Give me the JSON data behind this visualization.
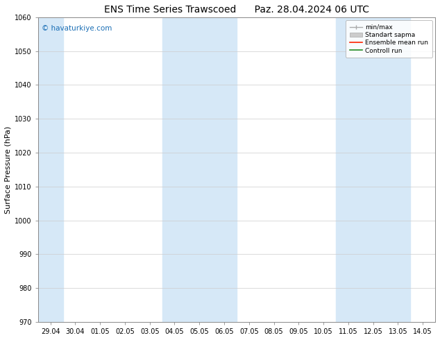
{
  "title_left": "ENS Time Series Trawscoed",
  "title_right": "Paz. 28.04.2024 06 UTC",
  "ylabel": "Surface Pressure (hPa)",
  "ylim": [
    970,
    1060
  ],
  "yticks": [
    970,
    980,
    990,
    1000,
    1010,
    1020,
    1030,
    1040,
    1050,
    1060
  ],
  "xtick_labels": [
    "29.04",
    "30.04",
    "01.05",
    "02.05",
    "03.05",
    "04.05",
    "05.05",
    "06.05",
    "07.05",
    "08.05",
    "09.05",
    "10.05",
    "11.05",
    "12.05",
    "13.05",
    "14.05"
  ],
  "shaded_bands": [
    {
      "xmin": -0.5,
      "xmax": 0.5,
      "color": "#d6e8f7"
    },
    {
      "xmin": 4.5,
      "xmax": 7.5,
      "color": "#d6e8f7"
    },
    {
      "xmin": 11.5,
      "xmax": 14.5,
      "color": "#d6e8f7"
    }
  ],
  "watermark": "© havaturkiye.com",
  "watermark_color": "#1a6eb5",
  "bg_color": "#ffffff",
  "plot_bg_color": "#ffffff",
  "grid_color": "#cccccc",
  "tick_label_size": 7,
  "title_fontsize": 10,
  "ylabel_fontsize": 8
}
